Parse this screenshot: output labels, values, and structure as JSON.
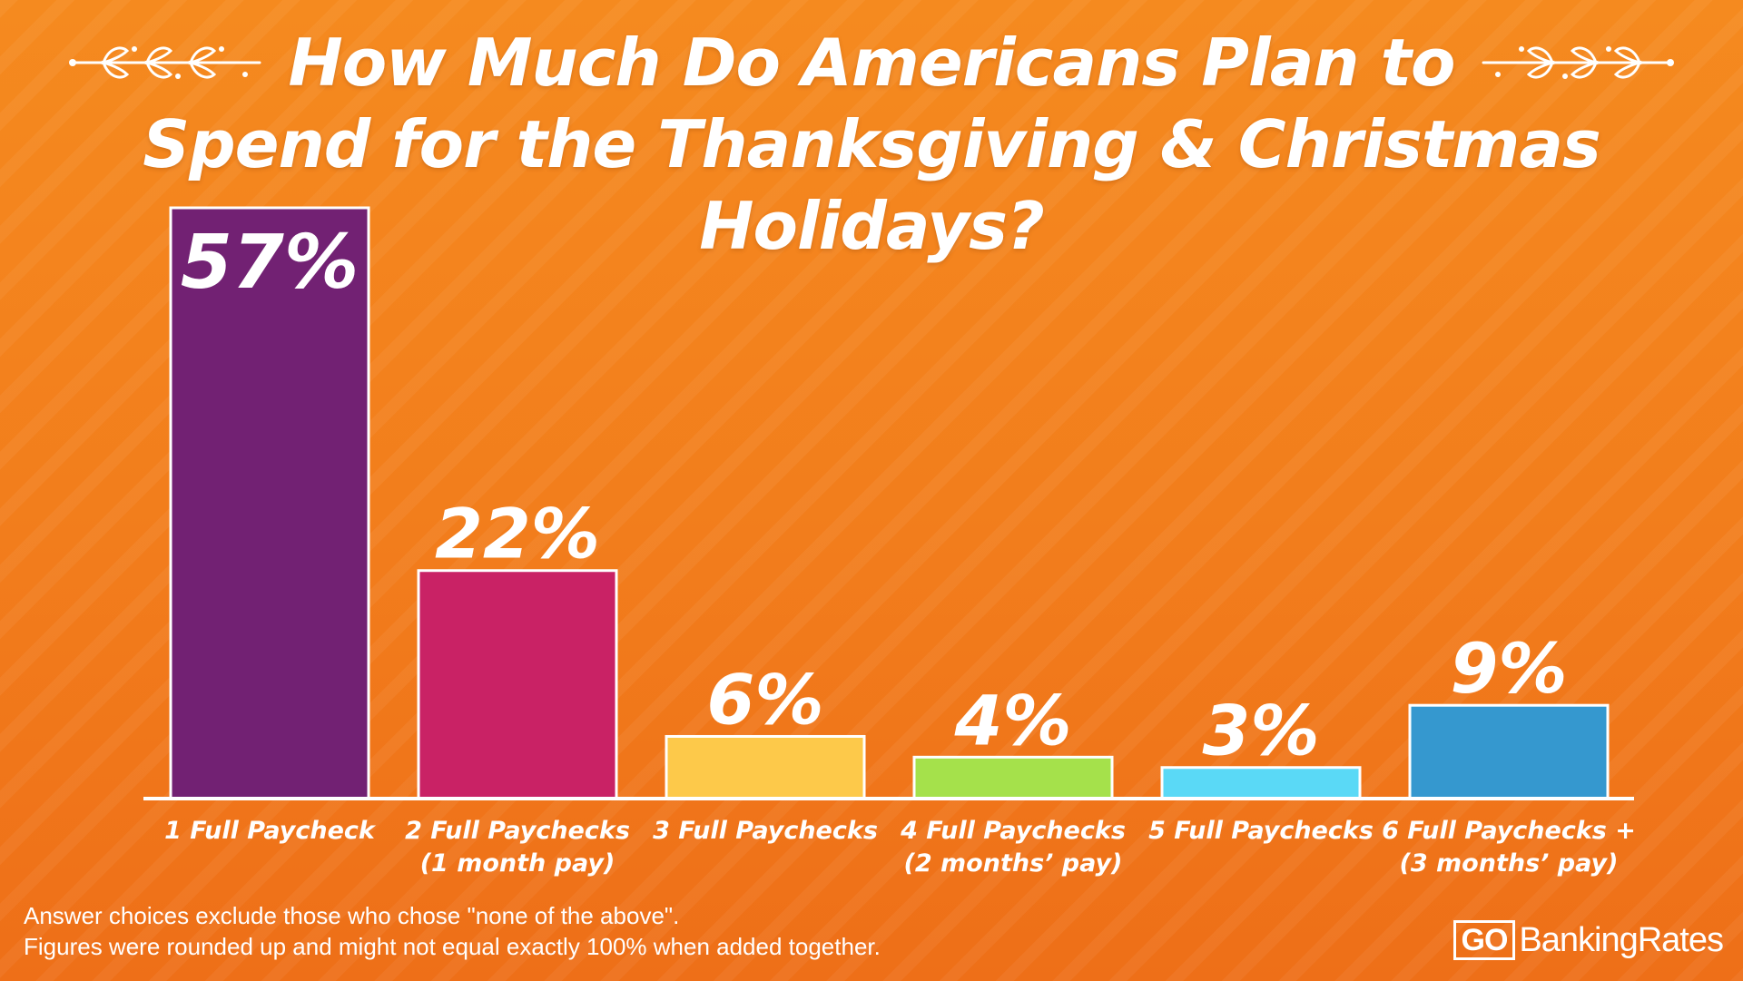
{
  "chart_data": {
    "type": "bar",
    "title_line1": "How Much Do Americans Plan to",
    "title_line2": "Spend for the Thanksgiving & Christmas Holidays?",
    "categories": [
      [
        "1 Full Paycheck"
      ],
      [
        "2 Full Paychecks",
        "(1 month pay)"
      ],
      [
        "3 Full Paychecks"
      ],
      [
        "4 Full Paychecks",
        "(2 months’ pay)"
      ],
      [
        "5 Full Paychecks"
      ],
      [
        "6 Full Paychecks +",
        "(3 months’ pay)"
      ]
    ],
    "values": [
      57,
      22,
      6,
      4,
      3,
      9
    ],
    "value_labels": [
      "57%",
      "22%",
      "6%",
      "4%",
      "3%",
      "9%"
    ],
    "colors": [
      "#722173",
      "#c92265",
      "#fdc94a",
      "#a5e14b",
      "#5ad9f6",
      "#3598cf"
    ],
    "ylim": [
      0,
      57
    ],
    "xlabel": "",
    "ylabel": "",
    "grid": false
  },
  "footnote": {
    "line1": "Answer choices exclude those who chose  \"none of the above\".",
    "line2": "Figures were rounded up and might not equal exactly 100% when added together."
  },
  "brand": {
    "logo_part1": "GO",
    "logo_part2": "BankingRates"
  }
}
